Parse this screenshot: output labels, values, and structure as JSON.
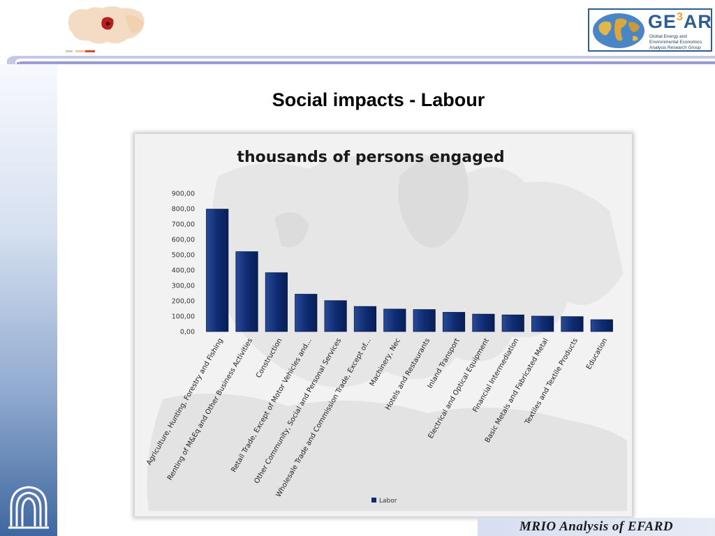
{
  "slide": {
    "title": "Social impacts - Labour",
    "footer": "MRIO Analysis of  EFARD"
  },
  "logos": {
    "gear_brand": "GE",
    "gear_brand_sup": "3",
    "gear_brand_tail": "AR",
    "gear_subtitle": "Global Energy and Environmental Economics Analysis Research Group"
  },
  "colors": {
    "bar": "#0d2a6e",
    "accent_band": "#b9bde0",
    "gear_blue": "#2f5d8f"
  },
  "chart_data": {
    "type": "bar",
    "title": "thousands of persons engaged",
    "categories": [
      "Agriculture, Hunting, Forestry and Fishing",
      "Renting of M&Eq and Other Business Activities",
      "Construction",
      "Retail Trade, Except of Motor Vehicles and...",
      "Other Community, Social and Personal Services",
      "Wholesale Trade and Commission Trade, Except of...",
      "Machinery, Nec",
      "Hotels and Restaurants",
      "Inland Transport",
      "Electrical and Optical Equipment",
      "Financial Intermediation",
      "Basic Metals and Fabricated Metal",
      "Textiles and Textile Products",
      "Education"
    ],
    "series": [
      {
        "name": "Labor",
        "values": [
          797,
          520,
          383,
          243,
          201,
          163,
          146,
          143,
          125,
          113,
          108,
          100,
          97,
          77
        ]
      }
    ],
    "y_ticks": [
      "0,00",
      "100,00",
      "200,00",
      "300,00",
      "400,00",
      "500,00",
      "600,00",
      "700,00",
      "800,00",
      "900,00"
    ],
    "ylim": [
      0,
      900
    ],
    "legend_position": "bottom",
    "grid": false
  }
}
